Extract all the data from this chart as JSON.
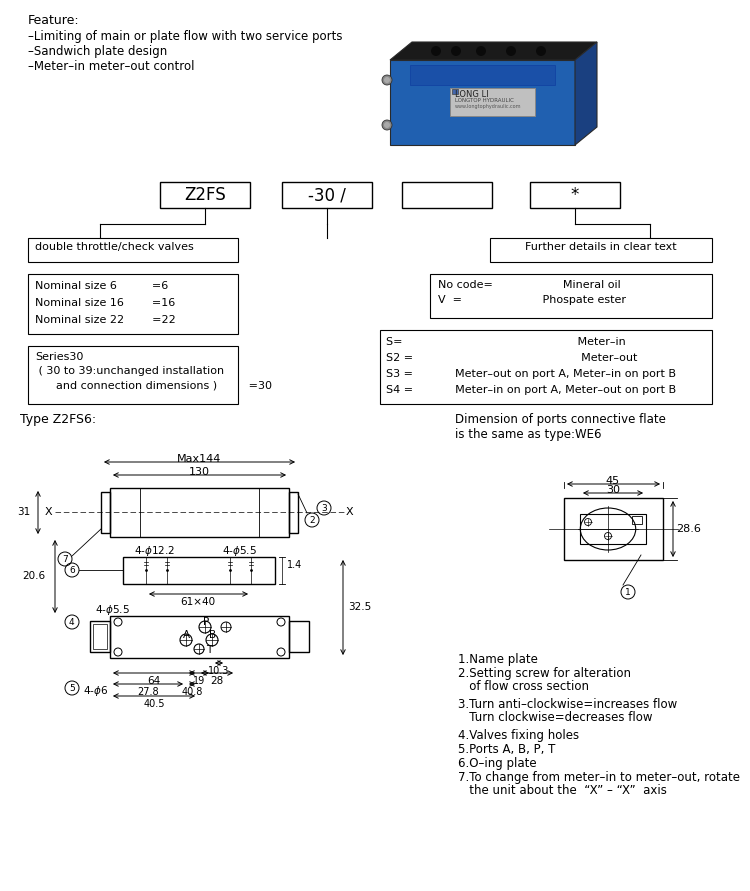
{
  "bg_color": "#ffffff",
  "feature_title": "Feature:",
  "feature_lines": [
    "–Limiting of main or plate flow with two service ports",
    "–Sandwich plate design",
    "–Meter–in meter–out control"
  ],
  "box1_text": "double throttle/check valves",
  "box2_lines": [
    "Nominal size 6          =6",
    "Nominal size 16        =16",
    "Nominal size 22        =22"
  ],
  "box3_line1": "Series30",
  "box3_line2": " ( 30 to 39:unchanged installation",
  "box3_line3": "      and connection dimensions )         =30",
  "box4_text": "Further details in clear text",
  "box5_line1": "No code=                    Mineral oil",
  "box5_line2": "V  =                       Phospate ester",
  "box6_lines": [
    "S=                                                  Meter–in",
    "S2 =                                                Meter–out",
    "S3 =            Meter–out on port A, Meter–in on port B",
    "S4 =            Meter–in on port A, Meter–out on port B"
  ],
  "type_label": "Type Z2FS6:",
  "dim_label": "Dimension of ports connective flate\nis the same as type:WE6",
  "notes": [
    "1.Name plate",
    "2.Setting screw for alteration\n   of flow cross section",
    "3.Turn anti–clockwise=increases flow\n   Turn clockwise=decreases flow",
    "4.Valves fixing holes",
    "5.Ports A, B, P, T",
    "6.O–ing plate",
    "7.To change from meter–in to meter–out, rotate\n   the unit about the  “X” – “X”  axis"
  ]
}
